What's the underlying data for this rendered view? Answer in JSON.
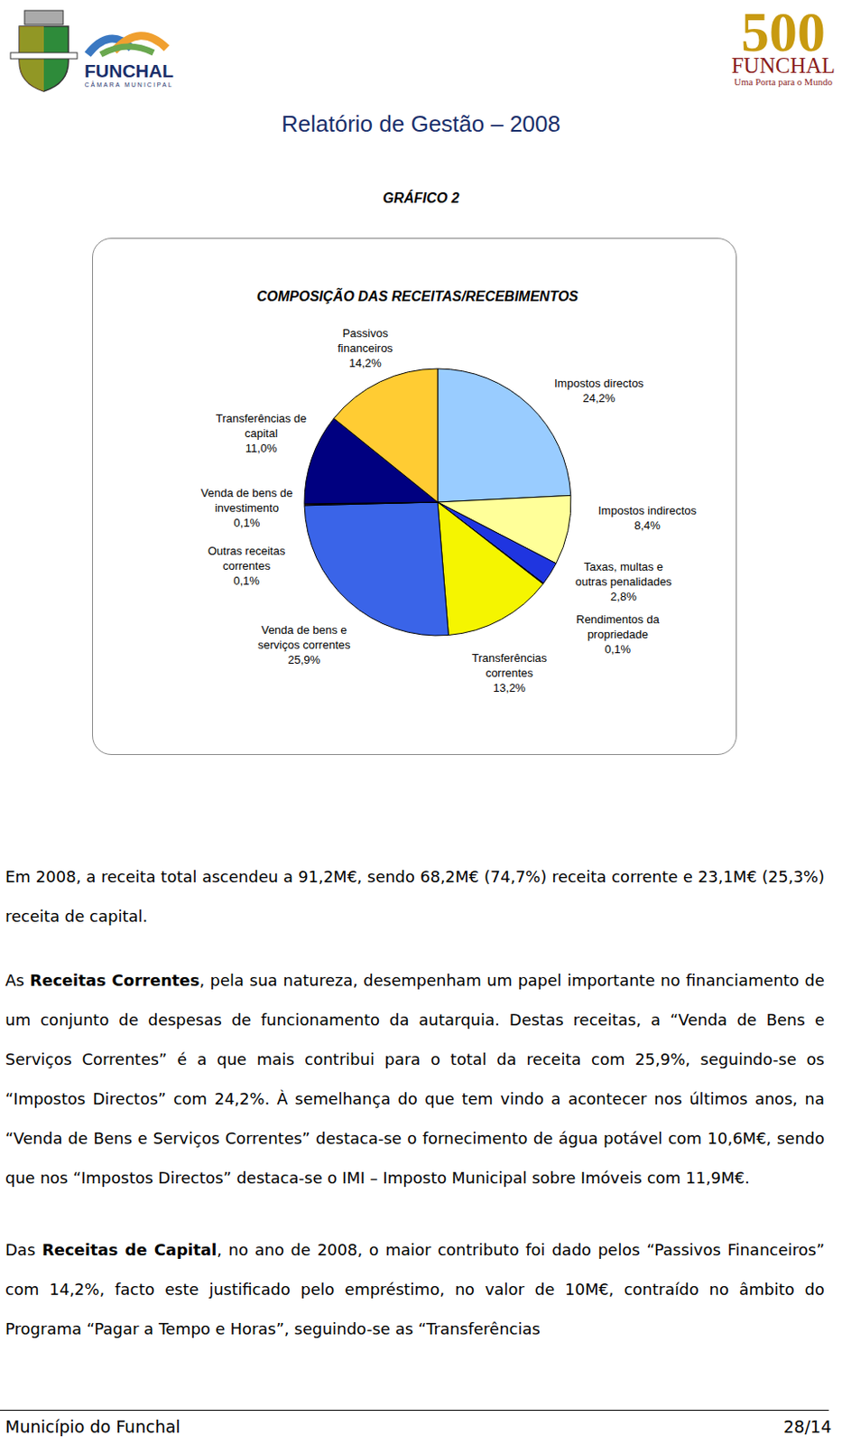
{
  "header": {
    "left_logo": {
      "name": "FUNCHAL",
      "subtitle": "CÂMARA MUNICIPAL"
    },
    "right_logo": {
      "number": "500",
      "name": "FUNCHAL",
      "tagline": "Uma Porta para o Mundo"
    },
    "title": "Relatório de Gestão – 2008"
  },
  "figure_label": "GRÁFICO 2",
  "chart_data": {
    "type": "pie",
    "title": "COMPOSIÇÃO DAS RECEITAS/RECEBIMENTOS",
    "categories": [
      "Impostos directos",
      "Impostos indirectos",
      "Taxas, multas e outras penalidades",
      "Rendimentos da propriedade",
      "Transferências correntes",
      "Venda de bens e serviços correntes",
      "Outras receitas correntes",
      "Venda de bens de investimento",
      "Transferências de capital",
      "Passivos financeiros"
    ],
    "values": [
      24.2,
      8.4,
      2.8,
      0.1,
      13.2,
      25.9,
      0.1,
      0.1,
      11.0,
      14.2
    ],
    "value_labels": [
      "24,2%",
      "8,4%",
      "2,8%",
      "0,1%",
      "13,2%",
      "25,9%",
      "0,1%",
      "0,1%",
      "11,0%",
      "14,2%"
    ],
    "colors": [
      "#99ccff",
      "#ffff99",
      "#1f35e0",
      "#660066",
      "#f5f500",
      "#3a64e8",
      "#cc99ff",
      "#ff99cc",
      "#000080",
      "#ffcc33"
    ],
    "data_labels": true
  },
  "paragraphs": [
    [
      {
        "text": "Em 2008, a receita total ascendeu a 91,2M€, sendo 68,2M€ (74,7%) receita corrente e 23,1M€ (25,3%) receita de capital."
      }
    ],
    [
      {
        "text": "As "
      },
      {
        "text": "Receitas Correntes",
        "bold": true
      },
      {
        "text": ", pela sua natureza, desempenham um papel importante no financiamento de um conjunto de despesas de funcionamento da autarquia. Destas receitas, a “Venda de Bens e Serviços Correntes” é a que mais contribui para o total da receita com 25,9%, seguindo-se os “Impostos Directos” com 24,2%. À semelhança do que tem vindo a acontecer nos últimos anos, na “Venda de Bens e Serviços Correntes” destaca-se o fornecimento de água potável com 10,6M€, sendo que nos “Impostos Directos” destaca-se o IMI – Imposto Municipal sobre Imóveis com 11,9M€."
      }
    ],
    [
      {
        "text": "Das "
      },
      {
        "text": "Receitas de Capital",
        "bold": true
      },
      {
        "text": ", no ano de 2008, o maior contributo foi dado pelos “Passivos Financeiros” com 14,2%, facto este justificado pelo empréstimo, no valor de 10M€, contraído no âmbito do Programa “Pagar a Tempo e Horas”, seguindo-se as “Transferências"
      }
    ]
  ],
  "footer": {
    "left": "Município do Funchal",
    "right": "28/14"
  }
}
